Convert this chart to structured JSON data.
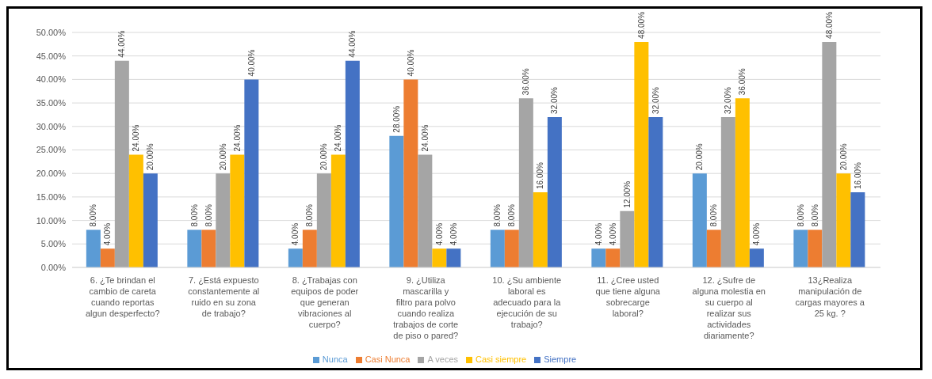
{
  "chart_data": {
    "type": "bar",
    "categories": [
      "6. ¿Te brindan el cambio de careta cuando reportas algun desperfecto?",
      "7. ¿Está expuesto constantemente al ruido en su zona de trabajo?",
      "8. ¿Trabajas con equipos de poder que generan vibraciones al cuerpo?",
      "9. ¿Utiliza mascarilla y filtro para polvo cuando realiza trabajos de corte de piso o pared?",
      "10. ¿Su ambiente laboral es adecuado para la ejecución de su trabajo?",
      "11. ¿Cree usted que tiene alguna sobrecarge laboral?",
      "12. ¿Sufre de alguna molestia en su cuerpo al realizar sus actividades diariamente?",
      "13¿Realiza manipulación de cargas mayores a 25 kg. ?"
    ],
    "series": [
      {
        "name": "Nunca",
        "color": "#5b9bd5",
        "values": [
          8,
          8,
          4,
          28,
          8,
          4,
          20,
          8
        ],
        "value_labels": [
          "8.00%",
          "8.00%",
          "4.00%",
          "28.00%",
          "8.00%",
          "4.00%",
          "20.00%",
          "8.00%"
        ]
      },
      {
        "name": "Casi Nunca",
        "color": "#ed7d31",
        "values": [
          4,
          8,
          8,
          40,
          8,
          4,
          8,
          8
        ],
        "value_labels": [
          "4.00%",
          "8.00%",
          "8.00%",
          "40.00%",
          "8.00%",
          "4.00%",
          "8.00%",
          "8.00%"
        ]
      },
      {
        "name": "A veces",
        "color": "#a5a5a5",
        "values": [
          44,
          20,
          20,
          24,
          36,
          12,
          32,
          48
        ],
        "value_labels": [
          "44.00%",
          "20.00%",
          "20.00%",
          "24.00%",
          "36.00%",
          "12.00%",
          "32.00%",
          "48.00%"
        ]
      },
      {
        "name": "Casi siempre",
        "color": "#ffc000",
        "values": [
          24,
          24,
          24,
          4,
          16,
          48,
          36,
          20
        ],
        "value_labels": [
          "24.00%",
          "24.00%",
          "24.00%",
          "4.00%",
          "16.00%",
          "48.00%",
          "36.00%",
          "20.00%"
        ]
      },
      {
        "name": "Siempre",
        "color": "#4472c4",
        "values": [
          20,
          40,
          44,
          4,
          32,
          32,
          4,
          16
        ],
        "value_labels": [
          "20.00%",
          "40.00%",
          "44.00%",
          "4.00%",
          "32.00%",
          "32.00%",
          "4.00%",
          "16.00%"
        ]
      }
    ],
    "ylim": [
      0,
      50
    ],
    "yticks": [
      {
        "value": 0,
        "label": "0.00%"
      },
      {
        "value": 5,
        "label": "5.00%"
      },
      {
        "value": 10,
        "label": "10.00%"
      },
      {
        "value": 15,
        "label": "15.00%"
      },
      {
        "value": 20,
        "label": "20.00%"
      },
      {
        "value": 25,
        "label": "25.00%"
      },
      {
        "value": 30,
        "label": "30.00%"
      },
      {
        "value": 35,
        "label": "35.00%"
      },
      {
        "value": 40,
        "label": "40.00%"
      },
      {
        "value": 45,
        "label": "45.00%"
      },
      {
        "value": 50,
        "label": "50.00%"
      }
    ],
    "grid": "y",
    "legend": "bottom"
  }
}
